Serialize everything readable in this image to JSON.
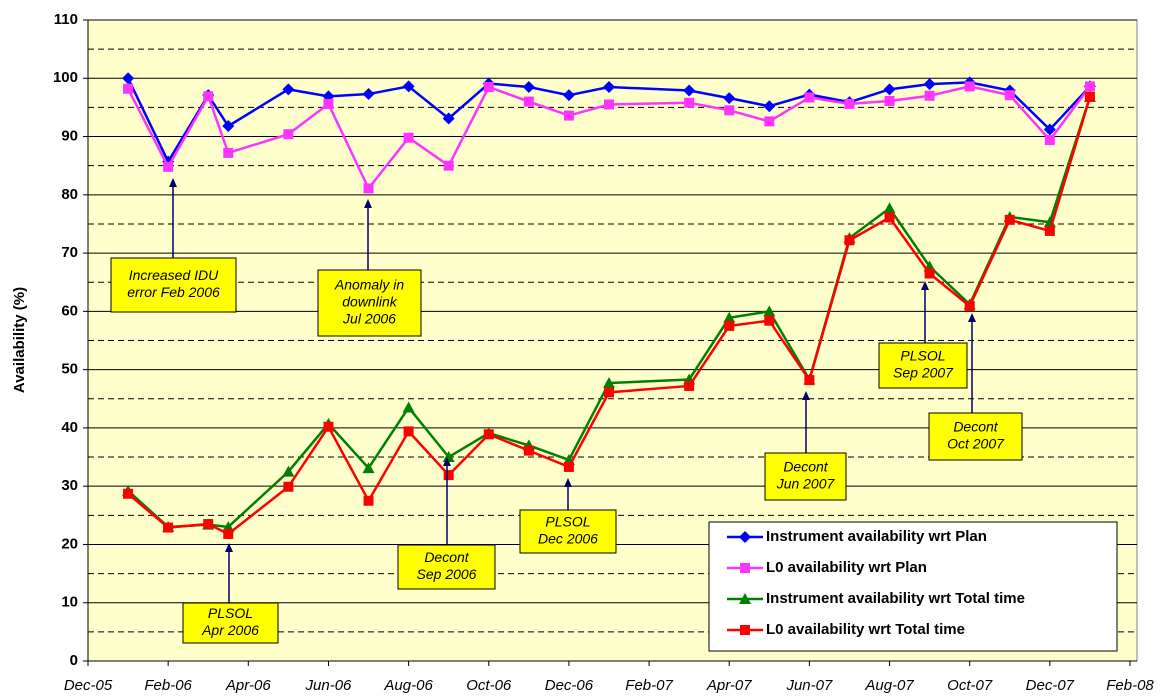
{
  "chart_data": {
    "type": "line",
    "y_label": "Availability (%)",
    "x": [
      1,
      2,
      3,
      3.5,
      5,
      6,
      7,
      8,
      9,
      10,
      11,
      12,
      13,
      15,
      16,
      17,
      18,
      19,
      20,
      21,
      22,
      23,
      24,
      25
    ],
    "xlim": [
      0,
      26
    ],
    "xticks": [
      {
        "value": 0,
        "label": "Dec-05"
      },
      {
        "value": 2,
        "label": "Feb-06"
      },
      {
        "value": 4,
        "label": "Apr-06"
      },
      {
        "value": 6,
        "label": "Jun-06"
      },
      {
        "value": 8,
        "label": "Aug-06"
      },
      {
        "value": 10,
        "label": "Oct-06"
      },
      {
        "value": 12,
        "label": "Dec-06"
      },
      {
        "value": 14,
        "label": "Feb-07"
      },
      {
        "value": 16,
        "label": "Apr-07"
      },
      {
        "value": 18,
        "label": "Jun-07"
      },
      {
        "value": 20,
        "label": "Aug-07"
      },
      {
        "value": 22,
        "label": "Oct-07"
      },
      {
        "value": 24,
        "label": "Dec-07"
      },
      {
        "value": 26,
        "label": "Feb-08"
      }
    ],
    "ylim": [
      0,
      110
    ],
    "yticks": [
      0,
      10,
      20,
      30,
      40,
      50,
      60,
      70,
      80,
      90,
      100,
      110
    ],
    "grid": true,
    "legend": "lower right",
    "series": [
      {
        "name": "Instrument availability wrt Plan",
        "color": "#0000ff",
        "marker": "diamond",
        "values": [
          100,
          85.7,
          97.1,
          91.8,
          98.1,
          96.9,
          97.3,
          98.6,
          93.1,
          99.1,
          98.5,
          97.1,
          98.5,
          97.9,
          96.6,
          95.2,
          97.2,
          95.9,
          98.1,
          99.0,
          99.3,
          97.9,
          91.2,
          98.6
        ]
      },
      {
        "name": "L0 availability wrt Plan",
        "color": "#ff33ff",
        "marker": "square",
        "values": [
          98.2,
          84.8,
          96.9,
          87.2,
          90.4,
          95.6,
          81.1,
          89.8,
          85.0,
          98.5,
          96.0,
          93.6,
          95.5,
          95.8,
          94.5,
          92.6,
          96.7,
          95.6,
          96.1,
          97.0,
          98.6,
          97.1,
          89.4,
          98.6
        ]
      },
      {
        "name": "Instrument availability wrt Total time",
        "color": "#008000",
        "marker": "triangle",
        "values": [
          29.2,
          23.0,
          23.4,
          23.0,
          32.5,
          40.7,
          33.1,
          43.5,
          35.0,
          39.1,
          37.0,
          34.5,
          47.7,
          48.3,
          58.9,
          60.0,
          48.3,
          72.6,
          77.7,
          67.7,
          61.2,
          76.2,
          75.3,
          96.8
        ]
      },
      {
        "name": "L0 availability wrt Total time",
        "color": "#ff0000",
        "marker": "square",
        "values": [
          28.7,
          22.9,
          23.5,
          21.8,
          29.9,
          40.2,
          27.5,
          39.4,
          31.9,
          38.9,
          36.1,
          33.3,
          46.1,
          47.2,
          57.5,
          58.4,
          48.2,
          72.2,
          76.1,
          66.5,
          60.9,
          75.7,
          73.8,
          96.8
        ]
      }
    ],
    "annotations": [
      [
        "Increased IDU",
        "error Feb 2006"
      ],
      [
        "Anomaly in",
        "downlink",
        "Jul 2006"
      ],
      [
        "PLSOL",
        "Apr 2006"
      ],
      [
        "Decont",
        "Sep 2006"
      ],
      [
        "PLSOL",
        "Dec 2006"
      ],
      [
        "Decont",
        "Jun 2007"
      ],
      [
        "PLSOL",
        "Sep 2007"
      ],
      [
        "Decont",
        "Oct 2007"
      ]
    ]
  }
}
